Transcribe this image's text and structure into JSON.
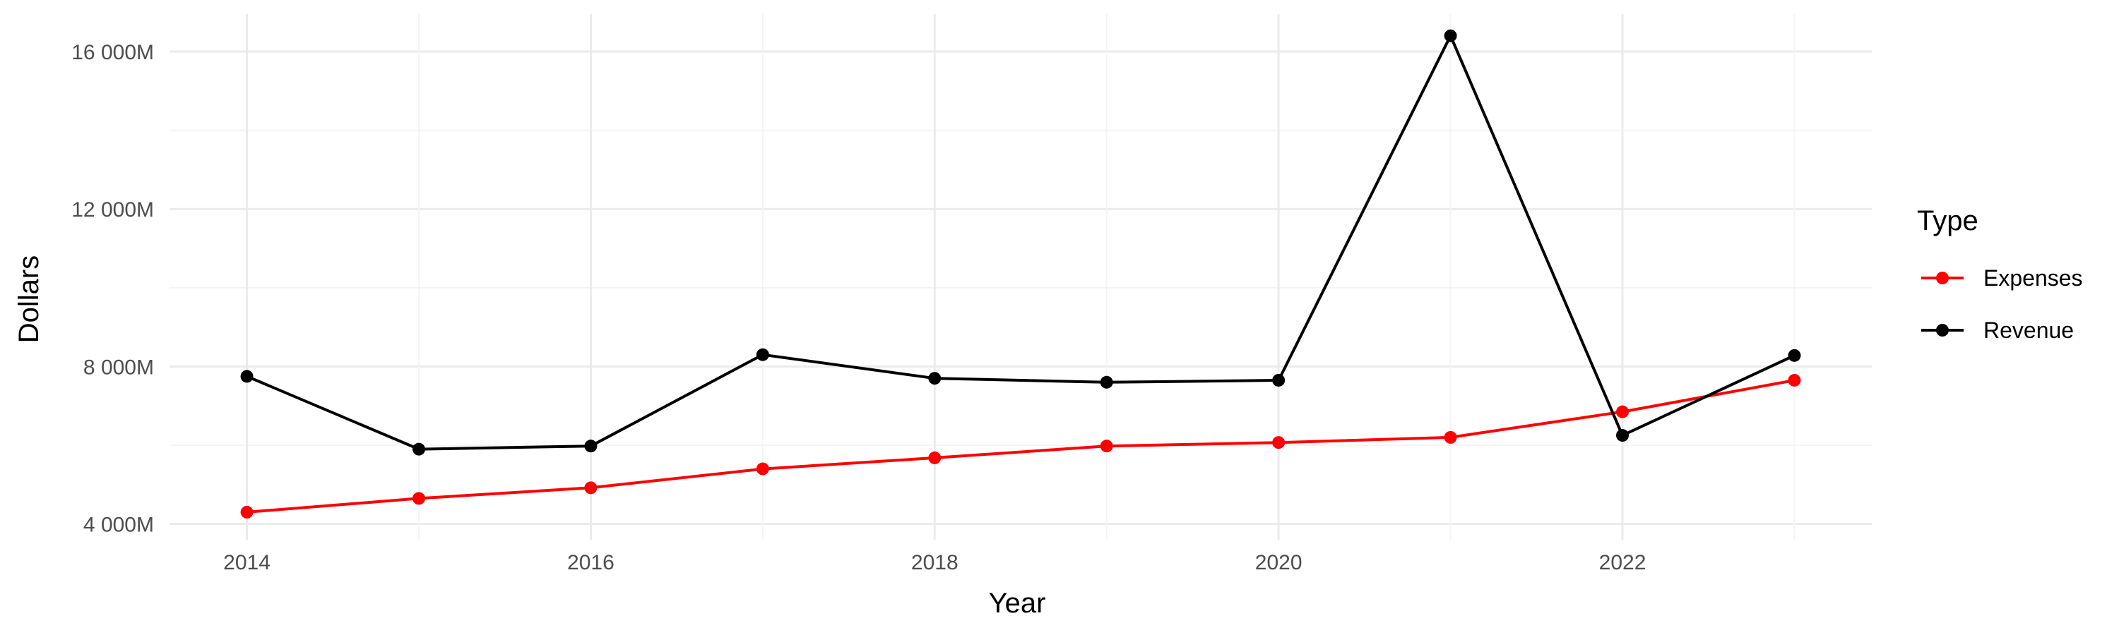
{
  "chart_data": {
    "type": "line",
    "title": "",
    "xlabel": "Year",
    "ylabel": "Dollars",
    "x": [
      2014,
      2015,
      2016,
      2017,
      2018,
      2019,
      2020,
      2021,
      2022,
      2023
    ],
    "x_tick_labels": [
      "2014",
      "2016",
      "2018",
      "2020",
      "2022"
    ],
    "y_tick_labels": [
      "4 000M",
      "8 000M",
      "12 000M",
      "16 000M"
    ],
    "xlim": [
      2013.55,
      2023.45
    ],
    "ylim": [
      3600,
      16950
    ],
    "y_units": "millions of dollars",
    "grid": true,
    "legend": {
      "title": "Type",
      "placement": "right"
    },
    "series": [
      {
        "name": "Expenses",
        "color": "#ff0000",
        "values": [
          4300,
          4650,
          4920,
          5400,
          5680,
          5980,
          6070,
          6200,
          6850,
          7650
        ]
      },
      {
        "name": "Revenue",
        "color": "#000000",
        "values": [
          7750,
          5900,
          5980,
          8300,
          7700,
          7600,
          7650,
          16400,
          6250,
          8280
        ]
      }
    ]
  }
}
